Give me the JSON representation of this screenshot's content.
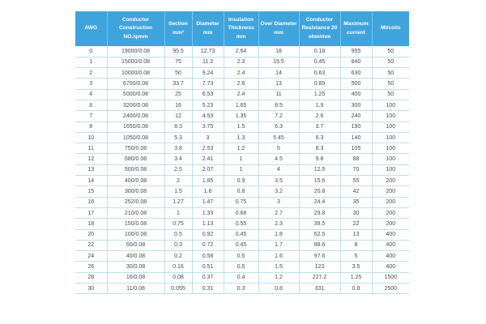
{
  "colors": {
    "page_bg": "#ffffff",
    "header_bg": "#3fa4dc",
    "header_text": "#ffffff",
    "header_divider": "#7cc4ec",
    "grid_line": "#bfdff0",
    "row_bg": "#ffffff",
    "row_text": "#4a4a4a"
  },
  "table": {
    "header_lines": [
      [
        "AWG"
      ],
      [
        "Conductor",
        "Construction",
        "NO./φmm"
      ],
      [
        "Section",
        "mm²"
      ],
      [
        "Diameter",
        "mm"
      ],
      [
        "Insulation",
        "Thickness",
        "mm"
      ],
      [
        "Over Diameter",
        "mm"
      ],
      [
        "Conductor",
        "Resistance 20",
        "ohm/mm"
      ],
      [
        "Maximum",
        "current"
      ],
      [
        "Mt/coils"
      ]
    ]
  },
  "chart_data": {
    "type": "table",
    "columns": [
      "AWG",
      "Conductor Construction NO./φmm",
      "Section mm²",
      "Diameter mm",
      "Insulation Thickness mm",
      "Over Diameter mm",
      "Conductor Resistance 20 ohm/mm",
      "Maximum current",
      "Mt/coils"
    ],
    "rows": [
      [
        "0",
        "19000/0.08",
        "95.5",
        "12.73",
        "2.64",
        "18",
        "0.18",
        "955",
        "50"
      ],
      [
        "1",
        "15000/0.08",
        "75",
        "11.3",
        "2.3",
        "15.5",
        "0.45",
        "840",
        "50"
      ],
      [
        "2",
        "10000/0.08",
        "50",
        "9.24",
        "2.4",
        "14",
        "0.63",
        "630",
        "50"
      ],
      [
        "3",
        "6700/0.08",
        "33.7",
        "7.73",
        "2.6",
        "13",
        "0.89",
        "500",
        "50"
      ],
      [
        "4",
        "5000/0.08",
        "25",
        "6.53",
        "2.4",
        "11",
        "1.25",
        "400",
        "50"
      ],
      [
        "6",
        "3200/0.08",
        "16",
        "5.23",
        "1.65",
        "8.5",
        "1.9",
        "300",
        "100"
      ],
      [
        "7",
        "2400/0.08",
        "12",
        "4.53",
        "1.35",
        "7.2",
        "2.6",
        "240",
        "100"
      ],
      [
        "8",
        "1650/0.08",
        "8.3",
        "3.75",
        "1.5",
        "6.3",
        "3.7",
        "190",
        "100"
      ],
      [
        "10",
        "1050/0.08",
        "5.3",
        "3",
        "1.3",
        "5.45",
        "6.3",
        "140",
        "100"
      ],
      [
        "11",
        "750/0.08",
        "3.8",
        "2.53",
        "1.2",
        "5",
        "8.3",
        "105",
        "100"
      ],
      [
        "12",
        "680/0.08",
        "3.4",
        "2.41",
        "1",
        "4.5",
        "9.8",
        "88",
        "100"
      ],
      [
        "13",
        "500/0.08",
        "2.5",
        "2.07",
        "1",
        "4",
        "12.5",
        "70",
        "100"
      ],
      [
        "14",
        "400/0.08",
        "2",
        "1.85",
        "0.9",
        "3.5",
        "15.6",
        "55",
        "200"
      ],
      [
        "15",
        "300/0.08",
        "1.5",
        "1.6",
        "0.8",
        "3.2",
        "20.8",
        "42",
        "200"
      ],
      [
        "16",
        "252/0.08",
        "1.27",
        "1.47",
        "0.75",
        "3",
        "24.4",
        "35",
        "200"
      ],
      [
        "17",
        "210/0.08",
        "1",
        "1.33",
        "0.68",
        "2.7",
        "29.8",
        "30",
        "200"
      ],
      [
        "18",
        "150/0.08",
        "0.75",
        "1.13",
        "0.55",
        "2.3",
        "39.5",
        "22",
        "200"
      ],
      [
        "20",
        "100/0.08",
        "0.5",
        "0.92",
        "0.45",
        "1.8",
        "62.5",
        "13",
        "400"
      ],
      [
        "22",
        "60/0.08",
        "0.3",
        "0.72",
        "0.45",
        "1.7",
        "88.6",
        "8",
        "400"
      ],
      [
        "24",
        "40/0.08",
        "0.2",
        "0.58",
        "0.5",
        "1.6",
        "97.6",
        "5",
        "400"
      ],
      [
        "26",
        "30/0.08",
        "0.16",
        "0.51",
        "0.5",
        "1.5",
        "123",
        "3.5",
        "400"
      ],
      [
        "28",
        "16/0.08",
        "0.08",
        "0.37",
        "0.4",
        "1.2",
        "227.2",
        "1.25",
        "1500"
      ],
      [
        "30",
        "11/0.08",
        "0.055",
        "0.31",
        "0.3",
        "0.8",
        "331",
        "0.8",
        "2500"
      ]
    ]
  }
}
